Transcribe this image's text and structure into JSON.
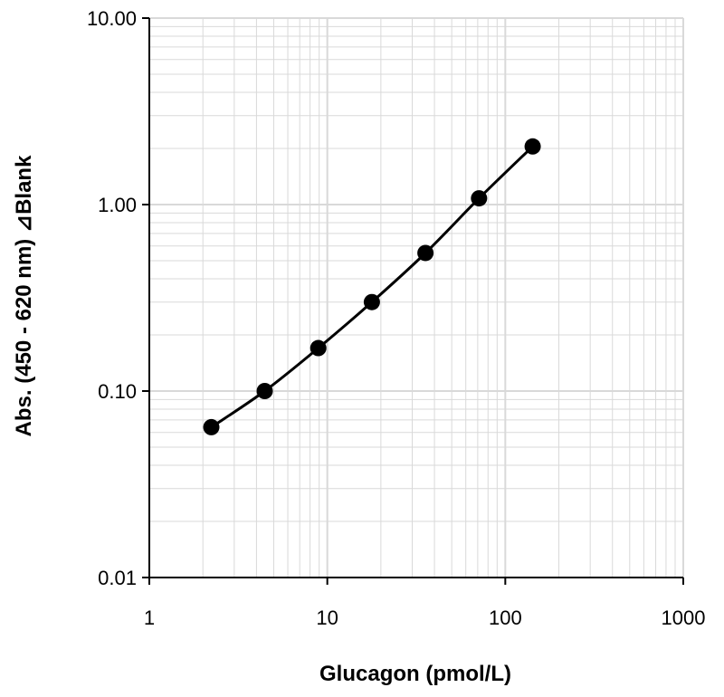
{
  "chart_data": {
    "type": "scatter",
    "title": "",
    "xlabel": "Glucagon (pmol/L)",
    "ylabel": "Abs. (450 - 620 nm) ⊿Blank",
    "x_scale": "log",
    "y_scale": "log",
    "xlim": [
      1,
      1000
    ],
    "ylim": [
      0.01,
      10
    ],
    "x_ticks": [
      "1",
      "10",
      "100",
      "1000"
    ],
    "y_ticks": [
      "0.01",
      "0.10",
      "1.00",
      "10.00"
    ],
    "grid": true,
    "legend": "none",
    "series": [
      {
        "x": [
          2.23,
          4.45,
          8.9,
          17.8,
          35.6,
          71.2,
          142.5
        ],
        "y": [
          0.064,
          0.1,
          0.17,
          0.3,
          0.55,
          1.08,
          2.05
        ]
      }
    ],
    "colors": {
      "marker": "#000000",
      "line": "#000000",
      "grid": "#d9d9d9"
    }
  }
}
